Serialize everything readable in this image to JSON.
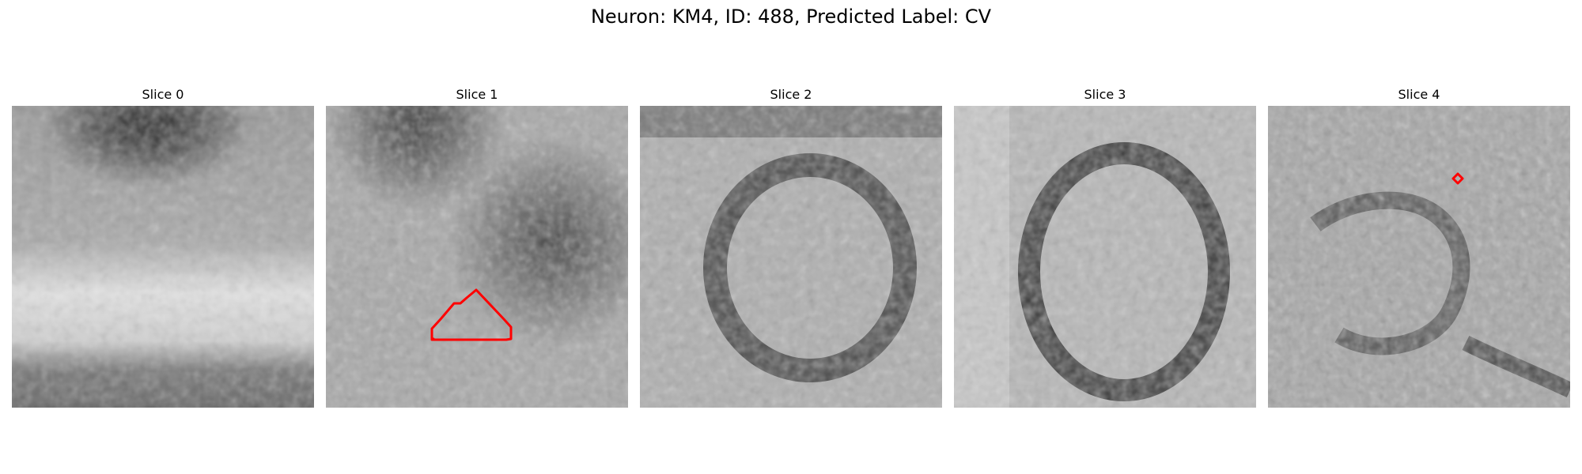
{
  "figure": {
    "title": "Neuron: KM4, ID: 488, Predicted Label: CV"
  },
  "panels": [
    {
      "title": "Slice 0"
    },
    {
      "title": "Slice 1"
    },
    {
      "title": "Slice 2"
    },
    {
      "title": "Slice 3"
    },
    {
      "title": "Slice 4"
    }
  ],
  "colors": {
    "background": "#ffffff",
    "contour": "#ff0000",
    "image_colormap": "grayscale"
  }
}
